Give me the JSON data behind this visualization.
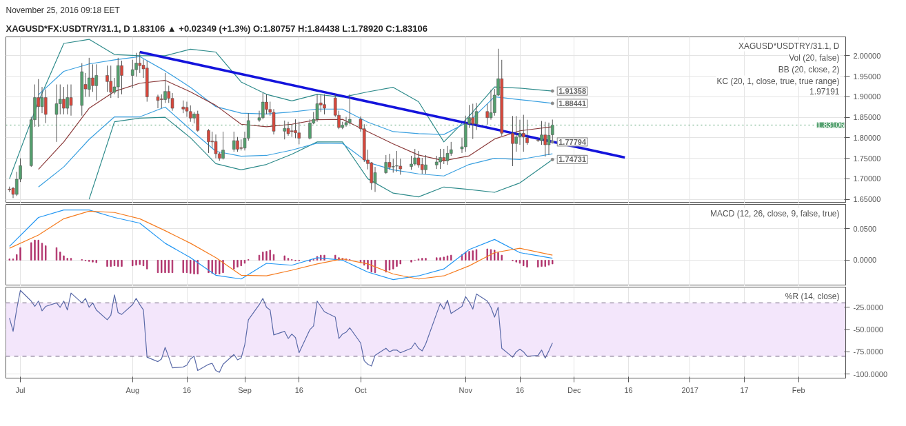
{
  "chart_data": [
    {
      "type": "candlestick",
      "title": "XAGUSD*FX:USDTRY/31.1, D 1.83106 ▲ +0.02349 (+1.3%) O:1.80757 H:1.84438 L:1.78920 C:1.83106",
      "subtitle": "November 25, 2016 09:18 EET",
      "x": [
        "2016-06-28",
        "2016-06-29",
        "2016-06-30",
        "2016-07-01",
        "2016-07-04",
        "2016-07-05",
        "2016-07-06",
        "2016-07-07",
        "2016-07-08",
        "2016-07-11",
        "2016-07-12",
        "2016-07-13",
        "2016-07-14",
        "2016-07-15",
        "2016-07-18",
        "2016-07-19",
        "2016-07-20",
        "2016-07-21",
        "2016-07-22",
        "2016-07-25",
        "2016-07-26",
        "2016-07-27",
        "2016-07-28",
        "2016-07-29",
        "2016-08-01",
        "2016-08-02",
        "2016-08-03",
        "2016-08-04",
        "2016-08-05",
        "2016-08-08",
        "2016-08-09",
        "2016-08-10",
        "2016-08-11",
        "2016-08-12",
        "2016-08-15",
        "2016-08-16",
        "2016-08-17",
        "2016-08-18",
        "2016-08-19",
        "2016-08-22",
        "2016-08-23",
        "2016-08-24",
        "2016-08-25",
        "2016-08-26",
        "2016-08-29",
        "2016-08-30",
        "2016-08-31",
        "2016-09-01",
        "2016-09-02",
        "2016-09-05",
        "2016-09-06",
        "2016-09-07",
        "2016-09-08",
        "2016-09-09",
        "2016-09-12",
        "2016-09-13",
        "2016-09-14",
        "2016-09-15",
        "2016-09-16",
        "2016-09-19",
        "2016-09-20",
        "2016-09-21",
        "2016-09-22",
        "2016-09-23",
        "2016-09-26",
        "2016-09-27",
        "2016-09-28",
        "2016-09-29",
        "2016-09-30",
        "2016-10-03",
        "2016-10-04",
        "2016-10-05",
        "2016-10-06",
        "2016-10-07",
        "2016-10-10",
        "2016-10-11",
        "2016-10-12",
        "2016-10-13",
        "2016-10-14",
        "2016-10-17",
        "2016-10-18",
        "2016-10-19",
        "2016-10-20",
        "2016-10-21",
        "2016-10-24",
        "2016-10-25",
        "2016-10-26",
        "2016-10-27",
        "2016-10-28",
        "2016-10-31",
        "2016-11-01",
        "2016-11-02",
        "2016-11-03",
        "2016-11-04",
        "2016-11-07",
        "2016-11-08",
        "2016-11-09",
        "2016-11-10",
        "2016-11-11",
        "2016-11-14",
        "2016-11-15",
        "2016-11-16",
        "2016-11-17",
        "2016-11-18",
        "2016-11-21",
        "2016-11-22",
        "2016-11-23",
        "2016-11-24",
        "2016-11-25"
      ],
      "ohlc": [
        [
          1.675,
          1.681,
          1.668,
          1.673
        ],
        [
          1.677,
          1.68,
          1.653,
          1.662
        ],
        [
          1.662,
          1.717,
          1.658,
          1.699
        ],
        [
          1.699,
          1.75,
          1.692,
          1.732
        ],
        [
          1.732,
          1.851,
          1.729,
          1.844
        ],
        [
          1.844,
          1.93,
          1.827,
          1.898
        ],
        [
          1.898,
          1.943,
          1.827,
          1.876
        ],
        [
          1.876,
          1.924,
          1.86,
          1.898
        ],
        [
          1.898,
          1.918,
          1.836,
          1.857
        ],
        [
          1.857,
          1.93,
          1.79,
          1.883
        ],
        [
          1.883,
          1.93,
          1.857,
          1.894
        ],
        [
          1.894,
          1.924,
          1.857,
          1.872
        ],
        [
          1.872,
          1.93,
          1.857,
          1.898
        ],
        [
          1.898,
          1.93,
          1.854,
          1.879
        ],
        [
          1.879,
          1.982,
          1.854,
          1.961
        ],
        [
          1.93,
          1.958,
          1.9,
          1.919
        ],
        [
          1.918,
          1.995,
          1.9,
          1.946
        ],
        [
          1.946,
          1.979,
          1.912,
          1.927
        ],
        [
          1.927,
          1.979,
          1.891,
          1.952
        ],
        [
          1.952,
          1.976,
          1.912,
          1.937
        ],
        [
          1.938,
          1.976,
          1.897,
          1.911
        ],
        [
          1.911,
          1.946,
          1.906,
          1.924
        ],
        [
          1.924,
          1.995,
          1.897,
          1.976
        ],
        [
          1.976,
          1.988,
          1.906,
          1.952
        ],
        [
          1.952,
          1.99,
          1.921,
          1.966
        ],
        [
          1.966,
          2.007,
          1.949,
          1.982
        ],
        [
          1.982,
          2.01,
          1.958,
          1.976
        ],
        [
          1.977,
          1.991,
          1.946,
          1.968
        ],
        [
          1.97,
          1.988,
          1.888,
          1.9
        ],
        [
          1.9,
          1.905,
          1.872,
          1.891
        ],
        [
          1.895,
          1.906,
          1.872,
          1.893
        ],
        [
          1.893,
          1.958,
          1.885,
          1.913
        ],
        [
          1.913,
          1.927,
          1.885,
          1.896
        ],
        [
          1.896,
          1.909,
          1.866,
          1.872
        ],
        [
          1.875,
          1.891,
          1.86,
          1.87
        ],
        [
          1.874,
          1.888,
          1.851,
          1.865
        ],
        [
          1.864,
          1.879,
          1.839,
          1.848
        ],
        [
          1.848,
          1.863,
          1.835,
          1.858
        ],
        [
          1.858,
          1.866,
          1.815,
          1.818
        ],
        [
          1.818,
          1.821,
          1.763,
          1.79
        ],
        [
          1.792,
          1.815,
          1.775,
          1.79
        ],
        [
          1.791,
          1.808,
          1.75,
          1.761
        ],
        [
          1.761,
          1.765,
          1.744,
          1.75
        ],
        [
          1.75,
          1.815,
          1.747,
          1.77
        ],
        [
          1.772,
          1.815,
          1.766,
          1.793
        ],
        [
          1.793,
          1.802,
          1.766,
          1.772
        ],
        [
          1.776,
          1.796,
          1.769,
          1.774
        ],
        [
          1.775,
          1.815,
          1.769,
          1.799
        ],
        [
          1.799,
          1.86,
          1.793,
          1.842
        ],
        [
          1.843,
          1.866,
          1.839,
          1.849
        ],
        [
          1.849,
          1.909,
          1.845,
          1.887
        ],
        [
          1.887,
          1.906,
          1.857,
          1.869
        ],
        [
          1.869,
          1.888,
          1.854,
          1.862
        ],
        [
          1.862,
          1.87,
          1.808,
          1.816
        ],
        [
          1.816,
          1.842,
          1.796,
          1.823
        ],
        [
          1.823,
          1.839,
          1.805,
          1.81
        ],
        [
          1.817,
          1.833,
          1.802,
          1.815
        ],
        [
          1.818,
          1.845,
          1.799,
          1.812
        ],
        [
          1.812,
          1.839,
          1.784,
          1.799
        ],
        [
          1.799,
          1.845,
          1.796,
          1.836
        ],
        [
          1.836,
          1.863,
          1.833,
          1.845
        ],
        [
          1.845,
          1.906,
          1.839,
          1.883
        ],
        [
          1.885,
          1.906,
          1.863,
          1.88
        ],
        [
          1.881,
          1.906,
          1.857,
          1.872
        ],
        [
          1.897,
          1.906,
          1.851,
          1.855
        ],
        [
          1.855,
          1.866,
          1.821,
          1.825
        ],
        [
          1.825,
          1.839,
          1.821,
          1.831
        ],
        [
          1.831,
          1.851,
          1.827,
          1.837
        ],
        [
          1.837,
          1.906,
          1.833,
          1.845
        ],
        [
          1.845,
          1.852,
          1.815,
          1.822
        ],
        [
          1.822,
          1.833,
          1.741,
          1.746
        ],
        [
          1.746,
          1.771,
          1.723,
          1.737
        ],
        [
          1.739,
          1.741,
          1.673,
          1.69
        ],
        [
          1.69,
          1.729,
          1.668,
          1.715
        ],
        [
          1.715,
          1.758,
          1.712,
          1.74
        ],
        [
          1.74,
          1.761,
          1.722,
          1.728
        ],
        [
          1.729,
          1.749,
          1.715,
          1.73
        ],
        [
          1.731,
          1.768,
          1.717,
          1.732
        ],
        [
          1.731,
          1.749,
          1.71,
          1.724
        ],
        [
          1.73,
          1.756,
          1.722,
          1.736
        ],
        [
          1.736,
          1.773,
          1.732,
          1.751
        ],
        [
          1.751,
          1.768,
          1.727,
          1.734
        ],
        [
          1.735,
          1.751,
          1.712,
          1.722
        ],
        [
          1.722,
          1.758,
          1.712,
          1.734
        ],
        [
          1.734,
          1.756,
          1.724,
          1.741
        ],
        [
          1.741,
          1.773,
          1.724,
          1.752
        ],
        [
          1.752,
          1.773,
          1.736,
          1.744
        ],
        [
          1.744,
          1.78,
          1.734,
          1.762
        ],
        [
          1.762,
          1.79,
          1.756,
          1.771
        ],
        [
          1.773,
          1.8,
          1.763,
          1.778
        ],
        [
          1.778,
          1.854,
          1.766,
          1.834
        ],
        [
          1.834,
          1.88,
          1.824,
          1.849
        ],
        [
          1.849,
          1.883,
          1.797,
          1.834
        ],
        [
          1.834,
          1.885,
          1.819,
          1.864
        ],
        [
          1.864,
          1.883,
          1.832,
          1.849
        ],
        [
          1.849,
          1.917,
          1.844,
          1.861
        ],
        [
          1.861,
          1.919,
          1.854,
          1.904
        ],
        [
          1.904,
          2.017,
          1.902,
          1.944
        ],
        [
          1.944,
          1.99,
          1.805,
          1.811
        ],
        [
          1.811,
          1.853,
          1.731,
          1.786
        ],
        [
          1.786,
          1.853,
          1.766,
          1.802
        ],
        [
          1.802,
          1.844,
          1.783,
          1.811
        ],
        [
          1.811,
          1.856,
          1.766,
          1.802
        ],
        [
          1.8,
          1.844,
          1.783,
          1.788
        ],
        [
          1.794,
          1.8,
          1.79,
          1.793
        ],
        [
          1.793,
          1.841,
          1.783,
          1.807
        ],
        [
          1.807,
          1.839,
          1.754,
          1.783
        ],
        [
          1.783,
          1.837,
          1.758,
          1.806
        ],
        [
          1.80757,
          1.84438,
          1.7892,
          1.83106
        ]
      ],
      "series": [
        {
          "type": "line",
          "color": "#2e8b8b",
          "x": [
            "2016-06-28",
            "2016-07-06",
            "2016-07-13",
            "2016-07-20",
            "2016-07-27",
            "2016-08-03",
            "2016-08-10",
            "2016-08-17",
            "2016-08-24",
            "2016-08-31",
            "2016-09-07",
            "2016-09-14",
            "2016-09-21",
            "2016-09-28",
            "2016-10-05",
            "2016-10-12",
            "2016-10-19",
            "2016-10-26",
            "2016-11-02",
            "2016-11-09",
            "2016-11-16",
            "2016-11-25"
          ],
          "values": [
            1.7,
            1.888,
            2.03,
            2.04,
            2.003,
            2.0,
            2.0,
            2.016,
            2.009,
            1.936,
            1.906,
            1.89,
            1.906,
            1.899,
            1.912,
            1.923,
            1.888,
            1.79,
            1.853,
            1.924,
            1.921,
            1.914
          ]
        },
        {
          "type": "line",
          "color": "#2e8b8b",
          "x": [
            "2016-07-20",
            "2016-07-27",
            "2016-08-03",
            "2016-08-10",
            "2016-08-17",
            "2016-08-24",
            "2016-08-31",
            "2016-09-07",
            "2016-09-14",
            "2016-09-21",
            "2016-09-28",
            "2016-10-05",
            "2016-10-12",
            "2016-10-19",
            "2016-10-26",
            "2016-11-02",
            "2016-11-09",
            "2016-11-16",
            "2016-11-25"
          ],
          "values": [
            1.65,
            1.839,
            1.848,
            1.85,
            1.8,
            1.737,
            1.722,
            1.735,
            1.76,
            1.79,
            1.79,
            1.7,
            1.665,
            1.656,
            1.68,
            1.674,
            1.667,
            1.69,
            1.747
          ]
        },
        {
          "type": "line",
          "color": "#3aa0e0",
          "x": [
            "2016-07-06",
            "2016-07-13",
            "2016-07-20",
            "2016-07-27",
            "2016-08-03",
            "2016-08-10",
            "2016-08-17",
            "2016-08-24",
            "2016-08-31",
            "2016-09-07",
            "2016-09-14",
            "2016-09-21",
            "2016-09-28",
            "2016-10-05",
            "2016-10-12",
            "2016-10-19",
            "2016-10-26",
            "2016-11-02",
            "2016-11-09",
            "2016-11-16",
            "2016-11-25"
          ],
          "values": [
            1.905,
            1.962,
            1.98,
            1.99,
            1.998,
            1.963,
            1.923,
            1.876,
            1.86,
            1.858,
            1.863,
            1.87,
            1.87,
            1.838,
            1.815,
            1.81,
            1.808,
            1.84,
            1.9,
            1.893,
            1.884
          ]
        },
        {
          "type": "line",
          "color": "#3aa0e0",
          "x": [
            "2016-07-06",
            "2016-07-13",
            "2016-07-20",
            "2016-07-27",
            "2016-08-03",
            "2016-08-10",
            "2016-08-17",
            "2016-08-24",
            "2016-08-31",
            "2016-09-07",
            "2016-09-14",
            "2016-09-21",
            "2016-09-28",
            "2016-10-05",
            "2016-10-12",
            "2016-10-19",
            "2016-10-26",
            "2016-11-02",
            "2016-11-09",
            "2016-11-16",
            "2016-11-25"
          ],
          "values": [
            1.68,
            1.729,
            1.796,
            1.851,
            1.851,
            1.875,
            1.82,
            1.767,
            1.755,
            1.757,
            1.77,
            1.787,
            1.786,
            1.74,
            1.722,
            1.712,
            1.707,
            1.735,
            1.75,
            1.747,
            1.761
          ]
        },
        {
          "type": "line",
          "color": "#8b3a3a",
          "x": [
            "2016-07-06",
            "2016-07-13",
            "2016-07-20",
            "2016-07-27",
            "2016-08-03",
            "2016-08-10",
            "2016-08-17",
            "2016-08-24",
            "2016-08-31",
            "2016-09-07",
            "2016-09-14",
            "2016-09-21",
            "2016-09-28",
            "2016-10-05",
            "2016-10-12",
            "2016-10-19",
            "2016-10-26",
            "2016-11-02",
            "2016-11-09",
            "2016-11-16",
            "2016-11-25"
          ],
          "values": [
            1.723,
            1.79,
            1.872,
            1.913,
            1.933,
            1.94,
            1.912,
            1.879,
            1.833,
            1.827,
            1.833,
            1.844,
            1.845,
            1.815,
            1.785,
            1.758,
            1.744,
            1.756,
            1.797,
            1.817,
            1.827
          ]
        },
        {
          "type": "line",
          "color": "#1414dc",
          "x": [
            "2016-08-03",
            "2016-12-15"
          ],
          "values": [
            2.009,
            1.752
          ]
        }
      ],
      "xlim": [
        "2016-06-27",
        "2017-02-14"
      ],
      "xticks": [
        {
          "value": "2016-07-01",
          "label": null
        },
        {
          "value": "2016-08-01",
          "label": null
        },
        {
          "value": "2016-08-16",
          "label": null
        },
        {
          "value": "2016-09-01",
          "label": null
        },
        {
          "value": "2016-09-16",
          "label": null
        },
        {
          "value": "2016-10-03",
          "label": null
        },
        {
          "value": "2016-11-01",
          "label": null
        },
        {
          "value": "2016-11-16",
          "label": null
        },
        {
          "value": "2016-12-01",
          "label": null
        },
        {
          "value": "2016-12-16",
          "label": null
        },
        {
          "value": "2017-01-02",
          "label": null
        },
        {
          "value": "2017-01-17",
          "label": null
        },
        {
          "value": "2017-02-01",
          "label": null
        }
      ],
      "ylim": [
        1.641,
        2.046
      ],
      "yticks": [
        {
          "value": 1.65,
          "label": "1.65000"
        },
        {
          "value": 1.7,
          "label": "1.70000"
        },
        {
          "value": 1.75,
          "label": "1.75000"
        },
        {
          "value": 1.8,
          "label": "1.80000"
        },
        {
          "value": 1.85,
          "label": "1.85000"
        },
        {
          "value": 1.9,
          "label": "1.90000"
        },
        {
          "value": 1.95,
          "label": "1.95000"
        },
        {
          "value": 2.0,
          "label": "2.00000"
        }
      ],
      "tick_labels": "y",
      "grid": true,
      "ref_lines": [
        {
          "axis": "y",
          "value": 1.83106,
          "label": "1.83106",
          "color": "#53a06e",
          "line_style": "dotted"
        }
      ],
      "annotations": [
        "XAGUSD*USDTRY/31.1, D",
        "Vol (20, false)",
        "BB (20, close, 2)",
        "KC (20, 1, close, true, true range)",
        "1.97191",
        {
          "text": "1.91358",
          "x": "2016-11-25",
          "y": 1.914
        },
        {
          "text": "1.88441",
          "x": "2016-11-25",
          "y": 1.884
        },
        {
          "text": "1.77794",
          "x": "2016-11-25",
          "y": 1.79
        },
        {
          "text": "1.74731",
          "x": "2016-11-25",
          "y": 1.747
        }
      ]
    },
    {
      "type": "line",
      "title": "MACD (12, 26, close, 9, false, true)",
      "x": [
        "2016-06-28",
        "2016-06-29",
        "2016-06-30",
        "2016-07-01",
        "2016-07-04",
        "2016-07-05",
        "2016-07-06",
        "2016-07-07",
        "2016-07-08",
        "2016-07-11",
        "2016-07-12",
        "2016-07-13",
        "2016-07-14",
        "2016-07-15",
        "2016-07-18",
        "2016-07-19",
        "2016-07-20",
        "2016-07-21",
        "2016-07-22",
        "2016-07-25",
        "2016-07-26",
        "2016-07-27",
        "2016-07-28",
        "2016-07-29",
        "2016-08-01",
        "2016-08-02",
        "2016-08-03",
        "2016-08-04",
        "2016-08-05",
        "2016-08-08",
        "2016-08-09",
        "2016-08-10",
        "2016-08-11",
        "2016-08-12",
        "2016-08-15",
        "2016-08-16",
        "2016-08-17",
        "2016-08-18",
        "2016-08-19",
        "2016-08-22",
        "2016-08-23",
        "2016-08-24",
        "2016-08-25",
        "2016-08-26",
        "2016-08-29",
        "2016-08-30",
        "2016-08-31",
        "2016-09-01",
        "2016-09-02",
        "2016-09-05",
        "2016-09-06",
        "2016-09-07",
        "2016-09-08",
        "2016-09-09",
        "2016-09-12",
        "2016-09-13",
        "2016-09-14",
        "2016-09-15",
        "2016-09-16",
        "2016-09-19",
        "2016-09-20",
        "2016-09-21",
        "2016-09-22",
        "2016-09-23",
        "2016-09-26",
        "2016-09-27",
        "2016-09-28",
        "2016-09-29",
        "2016-09-30",
        "2016-10-03",
        "2016-10-04",
        "2016-10-05",
        "2016-10-06",
        "2016-10-07",
        "2016-10-10",
        "2016-10-11",
        "2016-10-12",
        "2016-10-13",
        "2016-10-14",
        "2016-10-17",
        "2016-10-18",
        "2016-10-19",
        "2016-10-20",
        "2016-10-21",
        "2016-10-24",
        "2016-10-25",
        "2016-10-26",
        "2016-10-27",
        "2016-10-28",
        "2016-10-31",
        "2016-11-01",
        "2016-11-02",
        "2016-11-03",
        "2016-11-04",
        "2016-11-07",
        "2016-11-08",
        "2016-11-09",
        "2016-11-10",
        "2016-11-11",
        "2016-11-14",
        "2016-11-15",
        "2016-11-16",
        "2016-11-17",
        "2016-11-18",
        "2016-11-21",
        "2016-11-22",
        "2016-11-23",
        "2016-11-24",
        "2016-11-25"
      ],
      "series": [
        {
          "type": "bar",
          "color": "#b0306a",
          "values": [
            0.002,
            0.002,
            0.009,
            0.02,
            0.028,
            0.032,
            0.032,
            0.027,
            0.023,
            0.02,
            0.013,
            0.007,
            0.003,
            0.003,
            0.001,
            -0.001,
            -0.002,
            -0.003,
            -0.004,
            -0.01,
            -0.01,
            -0.009,
            -0.01,
            -0.01,
            -0.009,
            -0.008,
            -0.007,
            -0.009,
            -0.014,
            -0.02,
            -0.02,
            -0.02,
            -0.02,
            -0.02,
            -0.02,
            -0.02,
            -0.021,
            -0.022,
            -0.022,
            -0.02,
            -0.021,
            -0.022,
            -0.022,
            -0.02,
            -0.014,
            -0.011,
            -0.009,
            -0.005,
            0.001,
            0.008,
            0.013,
            0.014,
            0.016,
            0.009,
            0.007,
            0.003,
            0.001,
            -0.001,
            -0.001,
            -0.002,
            0.001,
            0.006,
            0.008,
            0.008,
            0.008,
            0.004,
            0.003,
            0.002,
            0.001,
            -0.004,
            -0.008,
            -0.014,
            -0.019,
            -0.02,
            -0.019,
            -0.016,
            -0.014,
            -0.01,
            -0.006,
            -0.003,
            0,
            0.002,
            0.003,
            0.003,
            0.004,
            0.004,
            0.005,
            0.007,
            0.008,
            0.009,
            0.013,
            0.014,
            0.015,
            0.017,
            0.018,
            0.017,
            0.016,
            0.012,
            0.008,
            -0.001,
            -0.003,
            -0.005,
            -0.009,
            -0.011,
            -0.011,
            -0.01,
            -0.01,
            -0.008,
            -0.006
          ]
        },
        {
          "type": "line",
          "color": "#2196f3",
          "x": [
            "2016-06-28",
            "2016-07-06",
            "2016-07-13",
            "2016-07-20",
            "2016-07-27",
            "2016-08-03",
            "2016-08-10",
            "2016-08-17",
            "2016-08-24",
            "2016-08-31",
            "2016-09-07",
            "2016-09-14",
            "2016-09-21",
            "2016-09-28",
            "2016-10-05",
            "2016-10-12",
            "2016-10-19",
            "2016-10-26",
            "2016-11-02",
            "2016-11-09",
            "2016-11-16",
            "2016-11-25"
          ],
          "values": [
            0.022,
            0.068,
            0.08,
            0.08,
            0.068,
            0.059,
            0.027,
            0.004,
            -0.024,
            -0.03,
            -0.005,
            -0.008,
            0.004,
            0.0,
            -0.019,
            -0.031,
            -0.025,
            -0.014,
            0.017,
            0.033,
            0.012,
            0.003
          ]
        },
        {
          "type": "line",
          "color": "#f57c20",
          "x": [
            "2016-06-28",
            "2016-07-06",
            "2016-07-13",
            "2016-07-20",
            "2016-07-27",
            "2016-08-03",
            "2016-08-10",
            "2016-08-17",
            "2016-08-24",
            "2016-08-31",
            "2016-09-07",
            "2016-09-14",
            "2016-09-21",
            "2016-09-28",
            "2016-10-05",
            "2016-10-12",
            "2016-10-19",
            "2016-10-26",
            "2016-11-02",
            "2016-11-09",
            "2016-11-16",
            "2016-11-25"
          ],
          "values": [
            0.019,
            0.04,
            0.066,
            0.078,
            0.076,
            0.066,
            0.047,
            0.027,
            0.004,
            -0.024,
            -0.025,
            -0.016,
            -0.006,
            0.002,
            -0.006,
            -0.022,
            -0.03,
            -0.025,
            -0.009,
            0.012,
            0.019,
            0.008
          ]
        }
      ],
      "xlim": [
        "2016-06-27",
        "2017-02-14"
      ],
      "xticks": [
        {
          "value": "2016-07-01",
          "label": null
        },
        {
          "value": "2016-08-01",
          "label": null
        },
        {
          "value": "2016-08-16",
          "label": null
        },
        {
          "value": "2016-09-01",
          "label": null
        },
        {
          "value": "2016-09-16",
          "label": null
        },
        {
          "value": "2016-10-03",
          "label": null
        },
        {
          "value": "2016-11-01",
          "label": null
        },
        {
          "value": "2016-11-16",
          "label": null
        },
        {
          "value": "2016-12-01",
          "label": null
        },
        {
          "value": "2016-12-16",
          "label": null
        },
        {
          "value": "2017-01-02",
          "label": null
        },
        {
          "value": "2017-01-17",
          "label": null
        },
        {
          "value": "2017-02-01",
          "label": null
        }
      ],
      "ylim": [
        -0.0407,
        0.0889
      ],
      "yticks": [
        {
          "value": 0.0,
          "label": "0.0000"
        },
        {
          "value": 0.05,
          "label": "0.0500"
        }
      ],
      "tick_labels": "y",
      "grid": true
    },
    {
      "type": "line",
      "title": "%R (14, close)",
      "x": [
        "2016-06-28",
        "2016-06-29",
        "2016-06-30",
        "2016-07-01",
        "2016-07-04",
        "2016-07-05",
        "2016-07-06",
        "2016-07-07",
        "2016-07-08",
        "2016-07-11",
        "2016-07-12",
        "2016-07-13",
        "2016-07-14",
        "2016-07-15",
        "2016-07-18",
        "2016-07-19",
        "2016-07-20",
        "2016-07-21",
        "2016-07-22",
        "2016-07-25",
        "2016-07-26",
        "2016-07-27",
        "2016-07-28",
        "2016-07-29",
        "2016-08-01",
        "2016-08-02",
        "2016-08-03",
        "2016-08-04",
        "2016-08-05",
        "2016-08-08",
        "2016-08-09",
        "2016-08-10",
        "2016-08-11",
        "2016-08-12",
        "2016-08-15",
        "2016-08-16",
        "2016-08-17",
        "2016-08-18",
        "2016-08-19",
        "2016-08-22",
        "2016-08-23",
        "2016-08-24",
        "2016-08-25",
        "2016-08-26",
        "2016-08-29",
        "2016-08-30",
        "2016-08-31",
        "2016-09-01",
        "2016-09-02",
        "2016-09-05",
        "2016-09-06",
        "2016-09-07",
        "2016-09-08",
        "2016-09-09",
        "2016-09-12",
        "2016-09-13",
        "2016-09-14",
        "2016-09-15",
        "2016-09-16",
        "2016-09-19",
        "2016-09-20",
        "2016-09-21",
        "2016-09-22",
        "2016-09-23",
        "2016-09-26",
        "2016-09-27",
        "2016-09-28",
        "2016-09-29",
        "2016-09-30",
        "2016-10-03",
        "2016-10-04",
        "2016-10-05",
        "2016-10-06",
        "2016-10-07",
        "2016-10-10",
        "2016-10-11",
        "2016-10-12",
        "2016-10-13",
        "2016-10-14",
        "2016-10-17",
        "2016-10-18",
        "2016-10-19",
        "2016-10-20",
        "2016-10-21",
        "2016-10-24",
        "2016-10-25",
        "2016-10-26",
        "2016-10-27",
        "2016-10-28",
        "2016-10-31",
        "2016-11-01",
        "2016-11-02",
        "2016-11-03",
        "2016-11-04",
        "2016-11-07",
        "2016-11-08",
        "2016-11-09",
        "2016-11-10",
        "2016-11-11",
        "2016-11-14",
        "2016-11-15",
        "2016-11-16",
        "2016-11-17",
        "2016-11-18",
        "2016-11-21",
        "2016-11-22",
        "2016-11-23",
        "2016-11-24",
        "2016-11-25"
      ],
      "series": [
        {
          "color": "#5a6aa8",
          "values": [
            -37,
            -52,
            -27,
            -6,
            -18,
            -24,
            -18,
            -29,
            -24,
            -20,
            -25,
            -18,
            -28,
            -9,
            -20,
            -15,
            -25,
            -20,
            -28,
            -39,
            -34,
            -11,
            -31,
            -33,
            -22,
            -15,
            -22,
            -28,
            -81,
            -86,
            -83,
            -70,
            -81,
            -93,
            -92,
            -90,
            -83,
            -80,
            -96,
            -89,
            -88,
            -96,
            -98,
            -89,
            -78,
            -84,
            -82,
            -67,
            -39,
            -22,
            -15,
            -25,
            -28,
            -56,
            -52,
            -60,
            -55,
            -59,
            -76,
            -50,
            -46,
            -18,
            -24,
            -30,
            -36,
            -60,
            -55,
            -53,
            -48,
            -65,
            -85,
            -89,
            -91,
            -79,
            -71,
            -75,
            -73,
            -73,
            -76,
            -71,
            -65,
            -71,
            -74,
            -66,
            -32,
            -21,
            -27,
            -17,
            -32,
            -24,
            -13,
            -19,
            -27,
            -10,
            -18,
            -25,
            -36,
            -25,
            -71,
            -81,
            -75,
            -72,
            -75,
            -80,
            -79,
            -73,
            -82,
            -74,
            -65
          ]
        }
      ],
      "xlim": [
        "2016-06-27",
        "2017-02-14"
      ],
      "xticks": [
        {
          "value": "2016-07-01",
          "label": "Jul"
        },
        {
          "value": "2016-08-01",
          "label": "Aug"
        },
        {
          "value": "2016-08-16",
          "label": "16"
        },
        {
          "value": "2016-09-01",
          "label": "Sep"
        },
        {
          "value": "2016-09-16",
          "label": "16"
        },
        {
          "value": "2016-10-03",
          "label": "Oct"
        },
        {
          "value": "2016-11-01",
          "label": "Nov"
        },
        {
          "value": "2016-11-16",
          "label": "16"
        },
        {
          "value": "2016-12-01",
          "label": "Dec"
        },
        {
          "value": "2016-12-16",
          "label": "16"
        },
        {
          "value": "2017-01-02",
          "label": "2017"
        },
        {
          "value": "2017-01-17",
          "label": "17"
        },
        {
          "value": "2017-02-01",
          "label": "Feb"
        }
      ],
      "ylim": [
        -104.5,
        -2.3
      ],
      "yticks": [
        {
          "value": -100,
          "label": "-100.0000"
        },
        {
          "value": -75,
          "label": "-75.0000"
        },
        {
          "value": -50,
          "label": "-50.0000"
        },
        {
          "value": -25,
          "label": "-25.0000"
        }
      ],
      "grid": true,
      "bands": [
        {
          "axis": "y",
          "from": -80,
          "to": -20,
          "color": "#f3e6fb"
        }
      ],
      "ref_lines": [
        {
          "axis": "y",
          "value": -20,
          "color": "#6a5a7a",
          "line_style": "dashed"
        },
        {
          "axis": "y",
          "value": -80,
          "color": "#6a5a7a",
          "line_style": "dashed"
        }
      ]
    }
  ]
}
